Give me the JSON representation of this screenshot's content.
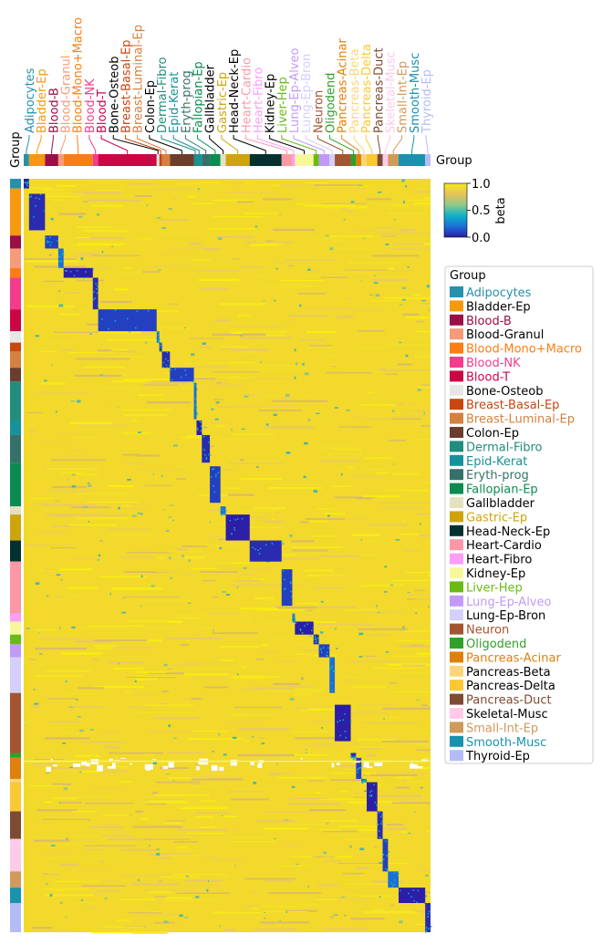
{
  "chart_data": {
    "type": "heatmap",
    "title": "",
    "row_annotation_label": "Group",
    "col_annotation_label": "Group",
    "colorbar": {
      "label": "beta",
      "ticks": [
        "1.0",
        "0.5",
        "0.0"
      ],
      "min": 0.0,
      "max": 1.0,
      "colors": [
        "#2c1ea6",
        "#1b6fd6",
        "#10b2c8",
        "#8fc98a",
        "#e6c25a",
        "#f6e91c"
      ]
    },
    "legend": {
      "title": "Group",
      "placement": "right",
      "items": [
        {
          "name": "Adipocytes",
          "color": "#2690ad",
          "text_color": "#2690ad"
        },
        {
          "name": "Bladder-Ep",
          "color": "#f7990c",
          "text_color": "#000000"
        },
        {
          "name": "Blood-B",
          "color": "#9a0f45",
          "text_color": "#9a0f45"
        },
        {
          "name": "Blood-Granul",
          "color": "#f59b7a",
          "text_color": "#000000"
        },
        {
          "name": "Blood-Mono+Macro",
          "color": "#fb7d14",
          "text_color": "#fb7d14"
        },
        {
          "name": "Blood-NK",
          "color": "#f53b8c",
          "text_color": "#f53b8c"
        },
        {
          "name": "Blood-T",
          "color": "#cc0545",
          "text_color": "#cc0545"
        },
        {
          "name": "Bone-Osteob",
          "color": "#e6e6e6",
          "text_color": "#000000"
        },
        {
          "name": "Breast-Basal-Ep",
          "color": "#c8460f",
          "text_color": "#c8460f"
        },
        {
          "name": "Breast-Luminal-Ep",
          "color": "#d4813f",
          "text_color": "#d4813f"
        },
        {
          "name": "Colon-Ep",
          "color": "#6c3c2c",
          "text_color": "#000000"
        },
        {
          "name": "Dermal-Fibro",
          "color": "#228c7e",
          "text_color": "#228c7e"
        },
        {
          "name": "Epid-Kerat",
          "color": "#18929a",
          "text_color": "#18929a"
        },
        {
          "name": "Eryth-prog",
          "color": "#357168",
          "text_color": "#357168"
        },
        {
          "name": "Fallopian-Ep",
          "color": "#0a8c50",
          "text_color": "#0a8c50"
        },
        {
          "name": "Gallbladder",
          "color": "#e4e1c0",
          "text_color": "#000000"
        },
        {
          "name": "Gastric-Ep",
          "color": "#cea40c",
          "text_color": "#cea40c"
        },
        {
          "name": "Head-Neck-Ep",
          "color": "#053030",
          "text_color": "#000000"
        },
        {
          "name": "Heart-Cardio",
          "color": "#fb98a8",
          "text_color": "#000000"
        },
        {
          "name": "Heart-Fibro",
          "color": "#fb9efa",
          "text_color": "#000000"
        },
        {
          "name": "Kidney-Ep",
          "color": "#f6f89a",
          "text_color": "#000000"
        },
        {
          "name": "Liver-Hep",
          "color": "#6aba16",
          "text_color": "#6aba16"
        },
        {
          "name": "Lung-Ep-Alveo",
          "color": "#c19af8",
          "text_color": "#c19af8"
        },
        {
          "name": "Lung-Ep-Bron",
          "color": "#d4cffc",
          "text_color": "#000000"
        },
        {
          "name": "Neuron",
          "color": "#a35430",
          "text_color": "#a35430"
        },
        {
          "name": "Oligodend",
          "color": "#30a02a",
          "text_color": "#30a02a"
        },
        {
          "name": "Pancreas-Acinar",
          "color": "#e0800c",
          "text_color": "#e0800c"
        },
        {
          "name": "Pancreas-Beta",
          "color": "#fcd57a",
          "text_color": "#000000"
        },
        {
          "name": "Pancreas-Delta",
          "color": "#fac832",
          "text_color": "#000000"
        },
        {
          "name": "Pancreas-Duct",
          "color": "#7d4a34",
          "text_color": "#7d4a34"
        },
        {
          "name": "Skeletal-Musc",
          "color": "#fdcbe8",
          "text_color": "#000000"
        },
        {
          "name": "Small-Int-Ep",
          "color": "#cf9a5a",
          "text_color": "#cf9a5a"
        },
        {
          "name": "Smooth-Musc",
          "color": "#1892ad",
          "text_color": "#1892ad"
        },
        {
          "name": "Thyroid-Ep",
          "color": "#b4bcf8",
          "text_color": "#000000"
        }
      ]
    },
    "row_group_order": [
      "Adipocytes",
      "Bladder-Ep",
      "Blood-B",
      "Blood-Granul",
      "Blood-Mono+Macro",
      "Blood-NK",
      "Blood-T",
      "Bone-Osteob",
      "Breast-Basal-Ep",
      "Breast-Luminal-Ep",
      "Colon-Ep",
      "Dermal-Fibro",
      "Epid-Kerat",
      "Eryth-prog",
      "Fallopian-Ep",
      "Gallbladder",
      "Gastric-Ep",
      "Head-Neck-Ep",
      "Heart-Cardio",
      "Heart-Fibro",
      "Kidney-Ep",
      "Liver-Hep",
      "Lung-Ep-Alveo",
      "Lung-Ep-Bron",
      "Neuron",
      "Oligodend",
      "Pancreas-Acinar",
      "Pancreas-Beta",
      "Pancreas-Delta",
      "Pancreas-Duct",
      "Skeletal-Musc",
      "Small-Int-Ep",
      "Smooth-Musc",
      "Thyroid-Ep"
    ],
    "row_group_rows": [
      12,
      58,
      16,
      24,
      12,
      39,
      27,
      14,
      11,
      20,
      17,
      48,
      18,
      34,
      54,
      10,
      32,
      26,
      64,
      10,
      16,
      12,
      16,
      44,
      74,
      6,
      26,
      4,
      36,
      34,
      40,
      20,
      19,
      36
    ],
    "column_group_order": [
      "Adipocytes",
      "Bladder-Ep",
      "Blood-B",
      "Blood-Granul",
      "Blood-Mono+Macro",
      "Blood-NK",
      "Blood-T",
      "Bone-Osteob",
      "Breast-Basal-Ep",
      "Breast-Luminal-Ep",
      "Colon-Ep",
      "Dermal-Fibro",
      "Epid-Kerat",
      "Eryth-prog",
      "Fallopian-Ep",
      "Gallbladder",
      "Gastric-Ep",
      "Head-Neck-Ep",
      "Heart-Cardio",
      "Heart-Fibro",
      "Kidney-Ep",
      "Liver-Hep",
      "Lung-Ep-Alveo",
      "Lung-Ep-Bron",
      "Neuron",
      "Oligodend",
      "Pancreas-Acinar",
      "Pancreas-Beta",
      "Pancreas-Delta",
      "Pancreas-Duct",
      "Skeletal-Musc",
      "Small-Int-Ep",
      "Smooth-Musc",
      "Thyroid-Ep"
    ],
    "column_group_samples": [
      2,
      6,
      5,
      2,
      11,
      2,
      22,
      1,
      1,
      3,
      9,
      1,
      2,
      3,
      4,
      2,
      9,
      12,
      4,
      1,
      7,
      2,
      4,
      2,
      6,
      2,
      2,
      2,
      4,
      2,
      2,
      4,
      10,
      2
    ],
    "column_label_colors": [
      "#2690ad",
      "#f7990c",
      "#9a0f45",
      "#f59b7a",
      "#fb7d14",
      "#f53b8c",
      "#cc0545",
      "#000000",
      "#c8460f",
      "#d4813f",
      "#000000",
      "#228c7e",
      "#18929a",
      "#357168",
      "#0a8c50",
      "#000000",
      "#cea40c",
      "#000000",
      "#fb98a8",
      "#fb9efa",
      "#000000",
      "#6aba16",
      "#c19af8",
      "#d4cffc",
      "#a35430",
      "#30a02a",
      "#e0800c",
      "#fcd57a",
      "#fac832",
      "#7d4a34",
      "#fdcbe8",
      "#cf9a5a",
      "#1892ad",
      "#b4bcf8"
    ],
    "cell_values": "mostly high methylation (~0.8-1.0); each column group shows a block of low values (~0.0-0.3) for its own row group along the diagonal; a band of missing values appears in the Pancreas-Acinar rows"
  }
}
